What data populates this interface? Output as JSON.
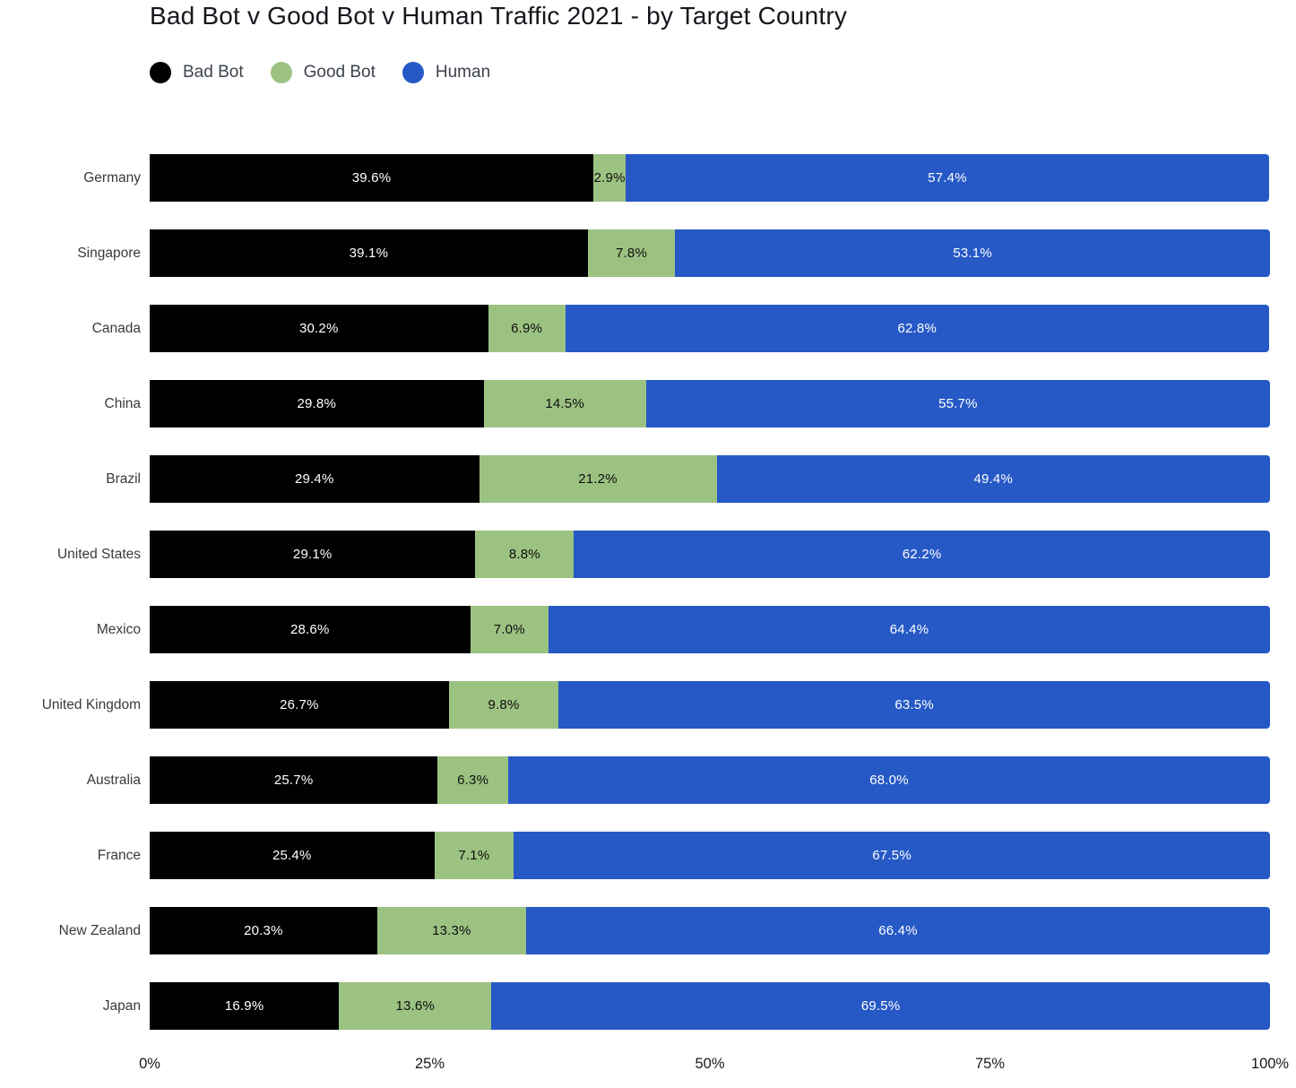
{
  "title": "Bad Bot v Good Bot v Human Traffic 2021 - by Target Country",
  "legend": {
    "items": [
      {
        "label": "Bad Bot",
        "color": "#000000"
      },
      {
        "label": "Good Bot",
        "color": "#9cc282"
      },
      {
        "label": "Human",
        "color": "#2659c6"
      }
    ]
  },
  "colors": {
    "bad_bot": "#000000",
    "good_bot": "#9cc282",
    "human": "#2659c6",
    "label_on_dark": "#ffffff",
    "label_on_light": "#0d0d0d"
  },
  "chart_data": {
    "type": "bar",
    "stacked": true,
    "orientation": "horizontal",
    "title": "Bad Bot v Good Bot v Human Traffic 2021 - by Target Country",
    "categories": [
      "Germany",
      "Singapore",
      "Canada",
      "China",
      "Brazil",
      "United States",
      "Mexico",
      "United Kingdom",
      "Australia",
      "France",
      "New Zealand",
      "Japan"
    ],
    "series": [
      {
        "name": "Bad Bot",
        "color": "#000000",
        "label_color": "#ffffff",
        "values": [
          39.6,
          39.1,
          30.2,
          29.8,
          29.4,
          29.1,
          28.6,
          26.7,
          25.7,
          25.4,
          20.3,
          16.9
        ]
      },
      {
        "name": "Good Bot",
        "color": "#9cc282",
        "label_color": "#0d0d0d",
        "values": [
          2.9,
          7.8,
          6.9,
          14.5,
          21.2,
          8.8,
          7.0,
          9.8,
          6.3,
          7.1,
          13.3,
          13.6
        ]
      },
      {
        "name": "Human",
        "color": "#2659c6",
        "label_color": "#ffffff",
        "values": [
          57.4,
          53.1,
          62.8,
          55.7,
          49.4,
          62.2,
          64.4,
          63.5,
          68.0,
          67.5,
          66.4,
          69.5
        ]
      }
    ],
    "value_suffix": "%",
    "value_decimals": 1,
    "xlim": [
      0,
      100
    ],
    "x_ticks": [
      {
        "label": "0%",
        "value": 0
      },
      {
        "label": "25%",
        "value": 25
      },
      {
        "label": "50%",
        "value": 50
      },
      {
        "label": "75%",
        "value": 75
      },
      {
        "label": "100%",
        "value": 100
      }
    ],
    "xlabel": "",
    "ylabel": "",
    "grid": false,
    "legend_position": "top-left"
  }
}
